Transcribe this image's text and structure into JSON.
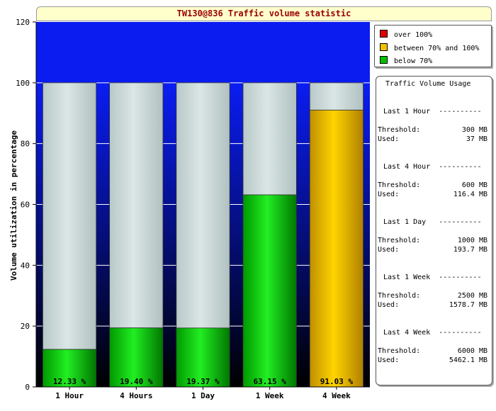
{
  "title": "TW130@836 Traffic volume statistic",
  "chart_data": {
    "type": "bar",
    "stacked": true,
    "categories": [
      "1 Hour",
      "4 Hours",
      "1 Day",
      "1 Week",
      "4 Week"
    ],
    "values": [
      12.33,
      19.4,
      19.37,
      63.15,
      91.03
    ],
    "value_labels": [
      "12.33 %",
      "19.40 %",
      "19.37 %",
      "63.15 %",
      "91.03 %"
    ],
    "ylabel": "Volume utilization in percentage",
    "ylim": [
      0,
      120
    ],
    "yticks": [
      0,
      20,
      40,
      60,
      80,
      100,
      120
    ],
    "capacity": 100,
    "thresholds": {
      "warning": 70,
      "over": 100
    },
    "legend": [
      {
        "label": "over 100%",
        "color": "#e00000"
      },
      {
        "label": "between 70% and 100%",
        "color": "#f0c000"
      },
      {
        "label": "below 70%",
        "color": "#00c000"
      }
    ],
    "colors": {
      "background_top": "#0a1cf0",
      "background_bottom": "#000000",
      "remaining": "#cddcdc",
      "below": "#11cc11",
      "between": "#f2c200",
      "over": "#e00000"
    }
  },
  "usage": {
    "title": "Traffic Volume Usage",
    "threshold_label": "Threshold:",
    "used_label": "Used:",
    "groups": [
      {
        "head": "Last 1 Hour  ----------",
        "threshold": "300 MB",
        "used": "37 MB"
      },
      {
        "head": "Last 4 Hour  ----------",
        "threshold": "600 MB",
        "used": "116.4 MB"
      },
      {
        "head": "Last 1 Day   ----------",
        "threshold": "1000 MB",
        "used": "193.7 MB"
      },
      {
        "head": "Last 1 Week  ----------",
        "threshold": "2500 MB",
        "used": "1578.7 MB"
      },
      {
        "head": "Last 4 Week  ----------",
        "threshold": "6000 MB",
        "used": "5462.1 MB"
      }
    ]
  }
}
